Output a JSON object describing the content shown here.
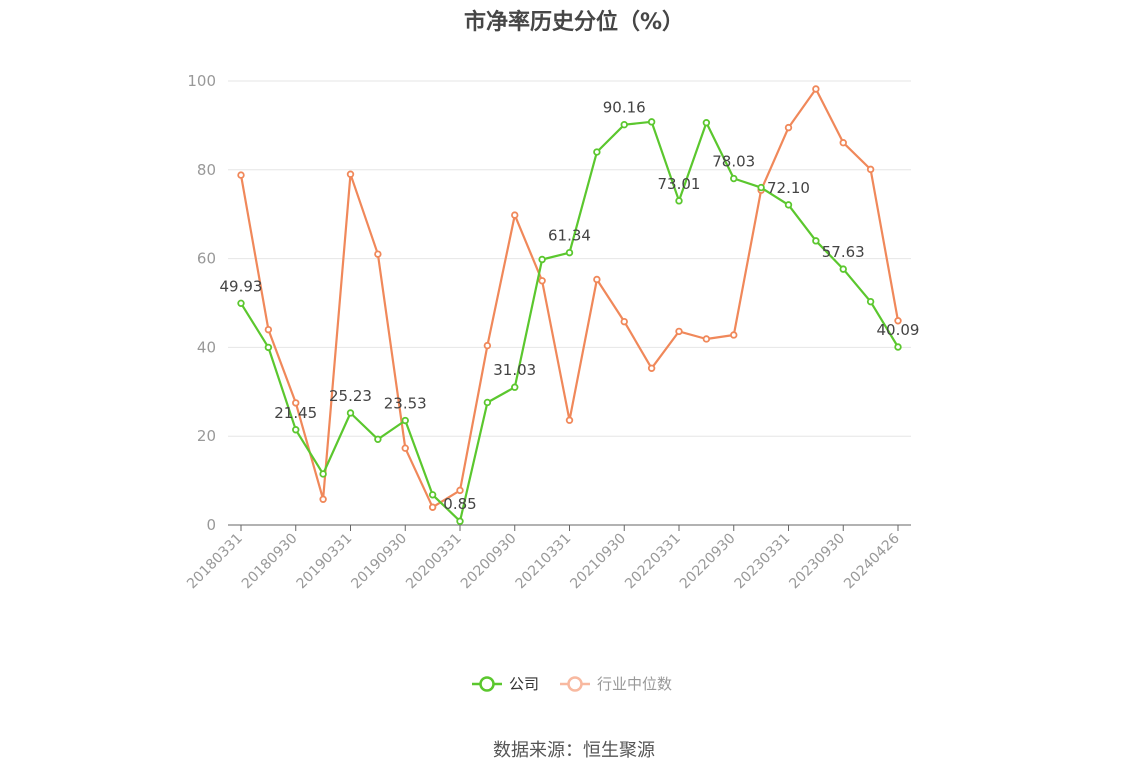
{
  "title": "市净率历史分位（%）",
  "source": "数据来源：恒生聚源",
  "colors": {
    "company": "#5bc72e",
    "industry": "#f0885a",
    "industry_legend": "#f8b9a0",
    "grid": "#e6e6e6",
    "axis": "#666666"
  },
  "legend": [
    {
      "name": "公司",
      "active": true
    },
    {
      "name": "行业中位数",
      "active": false
    }
  ],
  "chart_data": {
    "type": "line",
    "title": "市净率历史分位（%）",
    "ylim": [
      0,
      100
    ],
    "yticks": [
      0,
      20,
      40,
      60,
      80,
      100
    ],
    "grid": true,
    "legend_position": "bottom",
    "x": [
      "20180331",
      "20180630",
      "20180930",
      "20181231",
      "20190331",
      "20190630",
      "20190930",
      "20191231",
      "20200331",
      "20200630",
      "20200930",
      "20201231",
      "20210331",
      "20210630",
      "20210930",
      "20211231",
      "20220331",
      "20220630",
      "20220930",
      "20221231",
      "20230331",
      "20230630",
      "20230930",
      "20231231",
      "20240426"
    ],
    "xtick_labels": [
      "20180331",
      "20180930",
      "20190331",
      "20190930",
      "20200331",
      "20200930",
      "20210331",
      "20210930",
      "20220331",
      "20220930",
      "20230331",
      "20230930",
      "20240426"
    ],
    "series": [
      {
        "name": "公司",
        "values": [
          49.93,
          40.0,
          21.45,
          11.5,
          25.23,
          19.3,
          23.53,
          6.8,
          0.85,
          27.6,
          31.03,
          59.8,
          61.34,
          84.0,
          90.16,
          90.8,
          73.01,
          90.6,
          78.03,
          76.0,
          72.1,
          64.0,
          57.63,
          50.3,
          40.09
        ],
        "labels": [
          "49.93",
          "",
          "21.45",
          "",
          "25.23",
          "",
          "23.53",
          "",
          "0.85",
          "",
          "31.03",
          "",
          "61.34",
          "",
          "90.16",
          "",
          "73.01",
          "",
          "78.03",
          "",
          "72.10",
          "",
          "57.63",
          "",
          "40.09"
        ]
      },
      {
        "name": "行业中位数",
        "values": [
          78.8,
          44.0,
          27.5,
          5.8,
          79.0,
          61.0,
          17.3,
          4.0,
          7.8,
          40.4,
          69.8,
          55.0,
          23.6,
          55.3,
          45.8,
          35.3,
          43.6,
          41.9,
          42.8,
          75.4,
          89.5,
          98.2,
          86.1,
          80.1,
          46.0
        ]
      }
    ]
  }
}
